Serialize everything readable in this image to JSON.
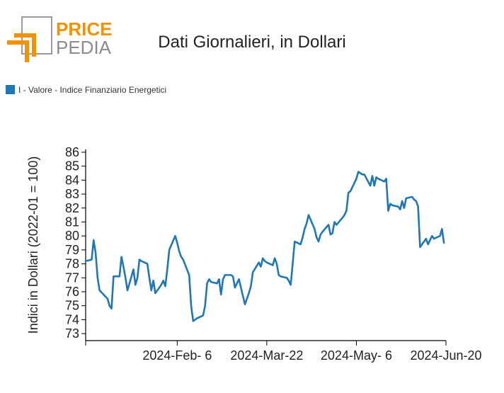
{
  "logo": {
    "word1": "PRICE",
    "word2": "PEDIA",
    "orange": "#f39200",
    "gray": "#9a9a9a"
  },
  "colors": {
    "series": "#1f77b4",
    "axis": "#000000"
  },
  "chart_data": {
    "type": "line",
    "title": "Dati Giornalieri, in Dollari",
    "ylabel": "Indici in Dollari (2022-01 = 100)",
    "xlabel": "",
    "ylim": [
      72.5,
      86.2
    ],
    "yticks": [
      73,
      74,
      75,
      76,
      77,
      78,
      79,
      80,
      81,
      82,
      83,
      84,
      85,
      86
    ],
    "xlim": [
      "2023-12-22",
      "2024-06-20"
    ],
    "xticks": [
      {
        "date": "2023-12-22",
        "label": ""
      },
      {
        "date": "2024-02-06",
        "label": "2024-Feb- 6"
      },
      {
        "date": "2024-03-22",
        "label": "2024-Mar-22"
      },
      {
        "date": "2024-05-06",
        "label": "2024-May- 6"
      },
      {
        "date": "2024-06-20",
        "label": "2024-Jun-20"
      }
    ],
    "grid": false,
    "legend_position": "top-left",
    "series": [
      {
        "name": "I - Valore - Indice Finanziario Energetici",
        "color": "#1f77b4",
        "points": [
          [
            "2023-12-22",
            78.2
          ],
          [
            "2023-12-25",
            78.3
          ],
          [
            "2023-12-26",
            79.7
          ],
          [
            "2023-12-27",
            78.8
          ],
          [
            "2023-12-28",
            77.0
          ],
          [
            "2023-12-29",
            76.1
          ],
          [
            "2024-01-02",
            75.5
          ],
          [
            "2024-01-03",
            75.0
          ],
          [
            "2024-01-04",
            74.8
          ],
          [
            "2024-01-05",
            77.1
          ],
          [
            "2024-01-08",
            77.1
          ],
          [
            "2024-01-09",
            78.5
          ],
          [
            "2024-01-10",
            77.8
          ],
          [
            "2024-01-11",
            77.0
          ],
          [
            "2024-01-12",
            76.1
          ],
          [
            "2024-01-15",
            77.6
          ],
          [
            "2024-01-16",
            76.5
          ],
          [
            "2024-01-17",
            77.0
          ],
          [
            "2024-01-18",
            78.3
          ],
          [
            "2024-01-19",
            78.2
          ],
          [
            "2024-01-22",
            78.0
          ],
          [
            "2024-01-23",
            77.0
          ],
          [
            "2024-01-24",
            76.1
          ],
          [
            "2024-01-25",
            76.8
          ],
          [
            "2024-01-26",
            75.9
          ],
          [
            "2024-01-29",
            76.5
          ],
          [
            "2024-01-30",
            76.8
          ],
          [
            "2024-01-31",
            76.4
          ],
          [
            "2024-02-01",
            77.6
          ],
          [
            "2024-02-02",
            79.0
          ],
          [
            "2024-02-05",
            80.0
          ],
          [
            "2024-02-06",
            79.5
          ],
          [
            "2024-02-07",
            78.9
          ],
          [
            "2024-02-08",
            78.5
          ],
          [
            "2024-02-09",
            78.3
          ],
          [
            "2024-02-12",
            77.2
          ],
          [
            "2024-02-13",
            75.0
          ],
          [
            "2024-02-14",
            73.9
          ],
          [
            "2024-02-15",
            74.0
          ],
          [
            "2024-02-16",
            74.1
          ],
          [
            "2024-02-19",
            74.3
          ],
          [
            "2024-02-20",
            75.0
          ],
          [
            "2024-02-21",
            76.6
          ],
          [
            "2024-02-22",
            76.9
          ],
          [
            "2024-02-23",
            76.7
          ],
          [
            "2024-02-26",
            76.6
          ],
          [
            "2024-02-27",
            76.9
          ],
          [
            "2024-02-28",
            75.8
          ],
          [
            "2024-02-29",
            76.9
          ],
          [
            "2024-03-01",
            77.2
          ],
          [
            "2024-03-04",
            77.2
          ],
          [
            "2024-03-05",
            77.1
          ],
          [
            "2024-03-06",
            76.3
          ],
          [
            "2024-03-07",
            76.6
          ],
          [
            "2024-03-08",
            76.9
          ],
          [
            "2024-03-11",
            75.1
          ],
          [
            "2024-03-12",
            75.5
          ],
          [
            "2024-03-13",
            75.9
          ],
          [
            "2024-03-14",
            76.4
          ],
          [
            "2024-03-15",
            77.4
          ],
          [
            "2024-03-18",
            78.1
          ],
          [
            "2024-03-19",
            77.8
          ],
          [
            "2024-03-20",
            78.4
          ],
          [
            "2024-03-21",
            78.2
          ],
          [
            "2024-03-22",
            78.1
          ],
          [
            "2024-03-25",
            77.9
          ],
          [
            "2024-03-26",
            78.4
          ],
          [
            "2024-03-27",
            78.0
          ],
          [
            "2024-03-28",
            77.2
          ],
          [
            "2024-03-29",
            77.1
          ],
          [
            "2024-04-01",
            77.0
          ],
          [
            "2024-04-02",
            76.8
          ],
          [
            "2024-04-03",
            76.5
          ],
          [
            "2024-04-04",
            78.0
          ],
          [
            "2024-04-05",
            79.6
          ],
          [
            "2024-04-08",
            79.4
          ],
          [
            "2024-04-09",
            79.9
          ],
          [
            "2024-04-10",
            80.5
          ],
          [
            "2024-04-11",
            80.9
          ],
          [
            "2024-04-12",
            81.5
          ],
          [
            "2024-04-15",
            80.5
          ],
          [
            "2024-04-16",
            79.9
          ],
          [
            "2024-04-17",
            79.6
          ],
          [
            "2024-04-18",
            80.1
          ],
          [
            "2024-04-19",
            80.3
          ],
          [
            "2024-04-22",
            80.8
          ],
          [
            "2024-04-23",
            80.1
          ],
          [
            "2024-04-24",
            80.2
          ],
          [
            "2024-04-25",
            81.0
          ],
          [
            "2024-04-26",
            80.8
          ],
          [
            "2024-04-29",
            81.3
          ],
          [
            "2024-04-30",
            81.5
          ],
          [
            "2024-05-01",
            81.8
          ],
          [
            "2024-05-02",
            83.1
          ],
          [
            "2024-05-03",
            83.2
          ],
          [
            "2024-05-06",
            84.1
          ],
          [
            "2024-05-07",
            84.6
          ],
          [
            "2024-05-08",
            84.5
          ],
          [
            "2024-05-09",
            84.4
          ],
          [
            "2024-05-10",
            84.4
          ],
          [
            "2024-05-13",
            83.6
          ],
          [
            "2024-05-14",
            84.3
          ],
          [
            "2024-05-15",
            83.6
          ],
          [
            "2024-05-16",
            84.2
          ],
          [
            "2024-05-17",
            84.1
          ],
          [
            "2024-05-20",
            83.9
          ],
          [
            "2024-05-21",
            84.1
          ],
          [
            "2024-05-22",
            81.8
          ],
          [
            "2024-05-23",
            82.3
          ],
          [
            "2024-05-24",
            82.2
          ],
          [
            "2024-05-27",
            82.1
          ],
          [
            "2024-05-28",
            81.9
          ],
          [
            "2024-05-29",
            82.5
          ],
          [
            "2024-05-30",
            82.0
          ],
          [
            "2024-05-31",
            82.7
          ],
          [
            "2024-06-03",
            82.8
          ],
          [
            "2024-06-04",
            82.6
          ],
          [
            "2024-06-05",
            82.5
          ],
          [
            "2024-06-06",
            82.1
          ],
          [
            "2024-06-07",
            79.2
          ],
          [
            "2024-06-10",
            79.8
          ],
          [
            "2024-06-11",
            79.4
          ],
          [
            "2024-06-12",
            79.7
          ],
          [
            "2024-06-13",
            80.0
          ],
          [
            "2024-06-14",
            79.8
          ],
          [
            "2024-06-17",
            80.0
          ],
          [
            "2024-06-18",
            80.5
          ],
          [
            "2024-06-19",
            79.5
          ]
        ]
      }
    ]
  }
}
